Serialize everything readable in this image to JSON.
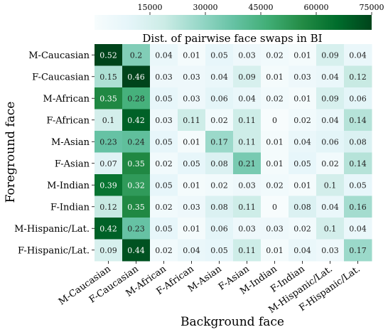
{
  "chart_data": {
    "type": "heatmap",
    "title": "Dist. of pairwise face swaps in BI",
    "xlabel": "Background face",
    "ylabel": "Foreground face",
    "categories": [
      "M-Caucasian",
      "F-Caucasian",
      "M-African",
      "F-African",
      "M-Asian",
      "F-Asian",
      "M-Indian",
      "F-Indian",
      "M-Hispanic/Lat.",
      "F-Hispanic/Lat."
    ],
    "rows": [
      "M-Caucasian",
      "F-Caucasian",
      "M-African",
      "F-African",
      "M-Asian",
      "F-Asian",
      "M-Indian",
      "F-Indian",
      "M-Hispanic/Lat.",
      "F-Hispanic/Lat."
    ],
    "values": [
      [
        0.52,
        0.2,
        0.04,
        0.01,
        0.05,
        0.03,
        0.02,
        0.01,
        0.09,
        0.04
      ],
      [
        0.15,
        0.46,
        0.03,
        0.03,
        0.04,
        0.09,
        0.01,
        0.03,
        0.04,
        0.12
      ],
      [
        0.35,
        0.28,
        0.05,
        0.03,
        0.06,
        0.04,
        0.02,
        0.01,
        0.09,
        0.06
      ],
      [
        0.1,
        0.42,
        0.03,
        0.11,
        0.02,
        0.11,
        0,
        0.02,
        0.04,
        0.14
      ],
      [
        0.23,
        0.24,
        0.05,
        0.01,
        0.17,
        0.11,
        0.01,
        0.04,
        0.06,
        0.08
      ],
      [
        0.07,
        0.35,
        0.02,
        0.05,
        0.08,
        0.21,
        0.01,
        0.05,
        0.02,
        0.14
      ],
      [
        0.39,
        0.32,
        0.05,
        0.01,
        0.02,
        0.03,
        0.02,
        0.01,
        0.1,
        0.05
      ],
      [
        0.12,
        0.35,
        0.02,
        0.03,
        0.08,
        0.11,
        0,
        0.08,
        0.04,
        0.16
      ],
      [
        0.42,
        0.23,
        0.05,
        0.01,
        0.06,
        0.03,
        0.03,
        0.02,
        0.1,
        0.04
      ],
      [
        0.09,
        0.44,
        0.02,
        0.04,
        0.05,
        0.11,
        0.01,
        0.04,
        0.03,
        0.17
      ]
    ],
    "colorbar": {
      "ticks": [
        "15000",
        "30000",
        "45000",
        "60000",
        "75000"
      ],
      "min": 0,
      "max": 75000,
      "colors": [
        "#f7fcfd",
        "#e5f5f9",
        "#ccece6",
        "#99d8c9",
        "#66c2a4",
        "#41ae76",
        "#238b45",
        "#006d2c",
        "#00441b"
      ]
    },
    "cell_color_range": [
      0,
      0.46
    ],
    "grid": false,
    "legend": "top"
  }
}
